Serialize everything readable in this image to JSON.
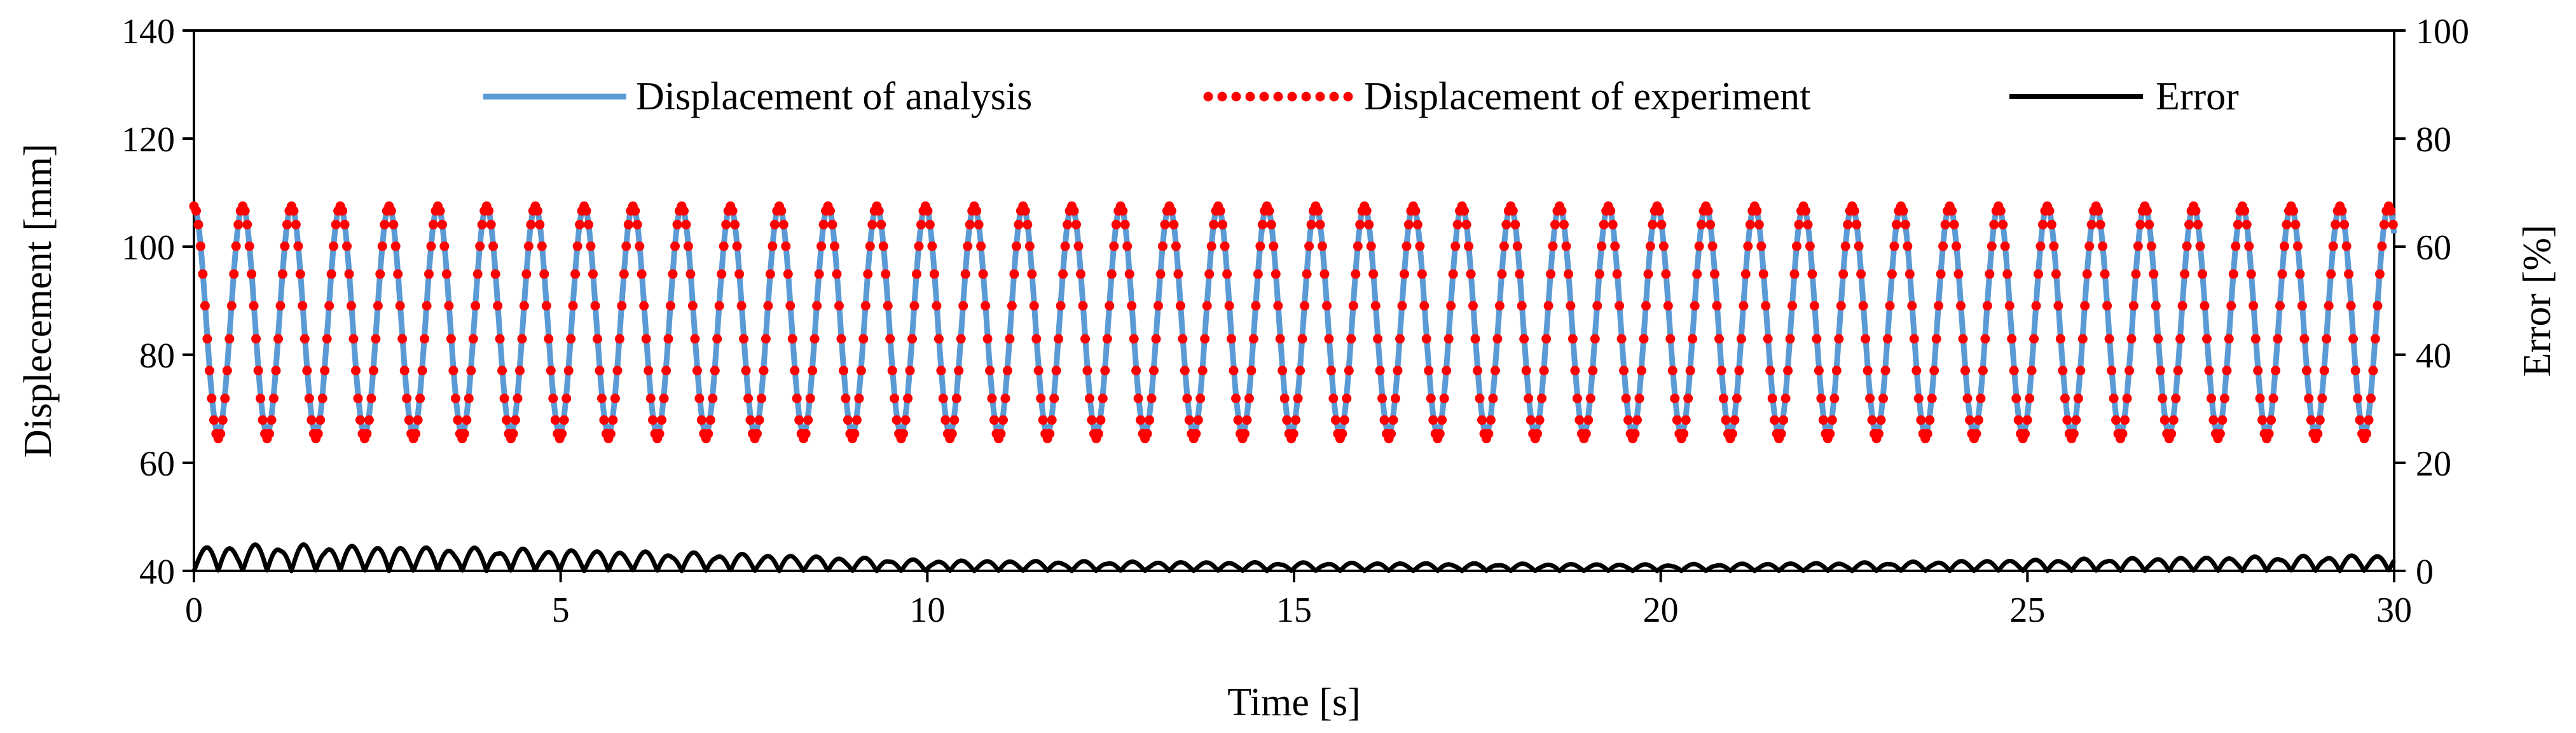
{
  "chart_data": {
    "type": "line",
    "title": "",
    "xlabel": "Time [s]",
    "ylabel": "Displecement [mm]",
    "y2label": "Error [%]",
    "xlim": [
      0,
      30
    ],
    "ylim": [
      40,
      140
    ],
    "y2lim": [
      0,
      100
    ],
    "x_ticks": [
      "0",
      "5",
      "10",
      "15",
      "20",
      "25",
      "30"
    ],
    "y_ticks": [
      "40",
      "60",
      "80",
      "100",
      "120",
      "140"
    ],
    "y2_ticks": [
      "0",
      "20",
      "40",
      "60",
      "80",
      "100"
    ],
    "grid": false,
    "legend_position": "top",
    "series": [
      {
        "name": "Displacement of analysis",
        "axis": "left",
        "style": "solid",
        "color": "#5B9BD5",
        "model": "sine",
        "mean": 86.5,
        "amplitude": 21,
        "period_s": 0.665,
        "phase_start": "max"
      },
      {
        "name": "Displacement of experiment",
        "axis": "left",
        "style": "dotted",
        "color": "#FF0000",
        "model": "sine",
        "mean": 86,
        "amplitude": 21.5,
        "period_s": 0.665,
        "phase_start": "max"
      },
      {
        "name": "Error",
        "axis": "right",
        "style": "solid",
        "color": "#000000",
        "model": "rectified-oscillation",
        "period_s": 0.665,
        "envelope_t": [
          0,
          1,
          3,
          5,
          8,
          10,
          13,
          16,
          20,
          23,
          26,
          30
        ],
        "envelope_peak": [
          4.5,
          5,
          4.5,
          4,
          3,
          2,
          1.7,
          1.5,
          1.2,
          1.6,
          2.3,
          3
        ]
      }
    ]
  }
}
